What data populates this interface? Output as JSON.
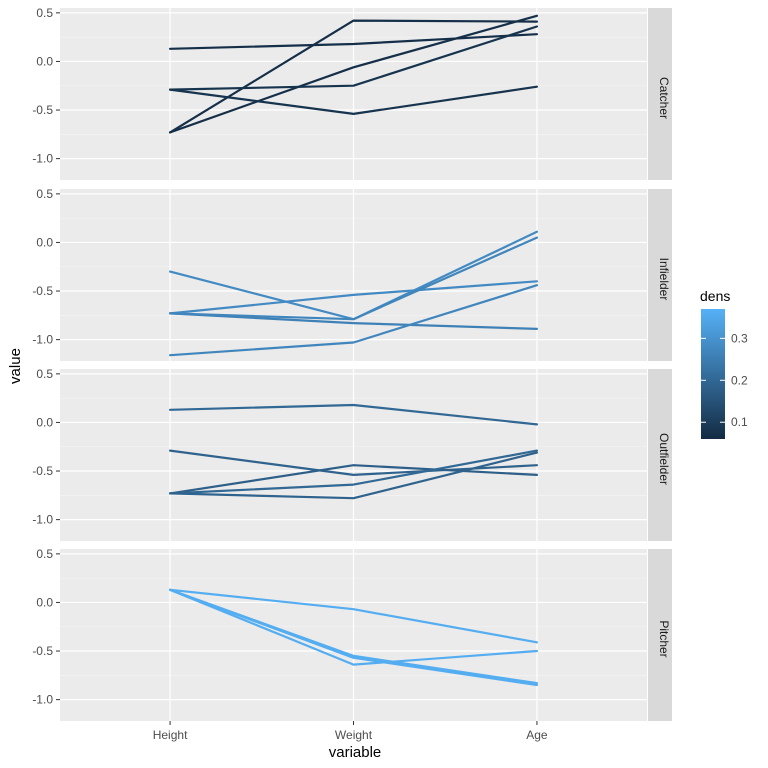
{
  "chart_data": {
    "type": "line",
    "subtype": "parallel-coordinates-faceted",
    "xlabel": "variable",
    "ylabel": "value",
    "categories": [
      "Height",
      "Weight",
      "Age"
    ],
    "yticks": [
      -1.0,
      -0.5,
      0.0,
      0.5
    ],
    "ytick_labels": [
      "-1.0",
      "-0.5",
      "0.0",
      "0.5"
    ],
    "ylim": [
      -1.22,
      0.55
    ],
    "xlim_pad": 0.6,
    "legend": {
      "title": "dens",
      "range": [
        0.06,
        0.37
      ],
      "ticks": [
        0.1,
        0.2,
        0.3
      ],
      "tick_labels": [
        "0.1",
        "0.2",
        "0.3"
      ],
      "low_color": "#132B43",
      "high_color": "#56B1F7",
      "placement": "right"
    },
    "facets": [
      {
        "label": "Catcher",
        "series": [
          {
            "dens": 0.07,
            "values": [
              0.13,
              0.18,
              0.28
            ]
          },
          {
            "dens": 0.07,
            "values": [
              -0.73,
              0.42,
              0.41
            ]
          },
          {
            "dens": 0.07,
            "values": [
              -0.73,
              -0.06,
              0.47
            ]
          },
          {
            "dens": 0.08,
            "values": [
              -0.29,
              -0.54,
              -0.26
            ]
          },
          {
            "dens": 0.08,
            "values": [
              -0.29,
              -0.25,
              0.36
            ]
          }
        ]
      },
      {
        "label": "Infielder",
        "series": [
          {
            "dens": 0.28,
            "values": [
              -0.3,
              -0.79,
              0.11
            ]
          },
          {
            "dens": 0.28,
            "values": [
              -0.73,
              -0.54,
              -0.4
            ]
          },
          {
            "dens": 0.26,
            "values": [
              -0.73,
              -0.83,
              -0.89
            ]
          },
          {
            "dens": 0.27,
            "values": [
              -0.73,
              -0.79,
              0.05
            ]
          },
          {
            "dens": 0.27,
            "values": [
              -1.16,
              -1.03,
              -0.44
            ]
          }
        ]
      },
      {
        "label": "Outfielder",
        "series": [
          {
            "dens": 0.2,
            "values": [
              0.13,
              0.18,
              -0.02
            ]
          },
          {
            "dens": 0.19,
            "values": [
              -0.29,
              -0.54,
              -0.44
            ]
          },
          {
            "dens": 0.18,
            "values": [
              -0.73,
              -0.44,
              -0.54
            ]
          },
          {
            "dens": 0.2,
            "values": [
              -0.73,
              -0.64,
              -0.29
            ]
          },
          {
            "dens": 0.19,
            "values": [
              -0.73,
              -0.78,
              -0.31
            ]
          }
        ]
      },
      {
        "label": "Pitcher",
        "series": [
          {
            "dens": 0.36,
            "values": [
              0.13,
              -0.07,
              -0.41
            ]
          },
          {
            "dens": 0.36,
            "values": [
              0.13,
              -0.55,
              -0.83
            ]
          },
          {
            "dens": 0.36,
            "values": [
              0.13,
              -0.64,
              -0.5
            ]
          },
          {
            "dens": 0.36,
            "values": [
              0.13,
              -0.57,
              -0.85
            ]
          }
        ]
      }
    ]
  }
}
